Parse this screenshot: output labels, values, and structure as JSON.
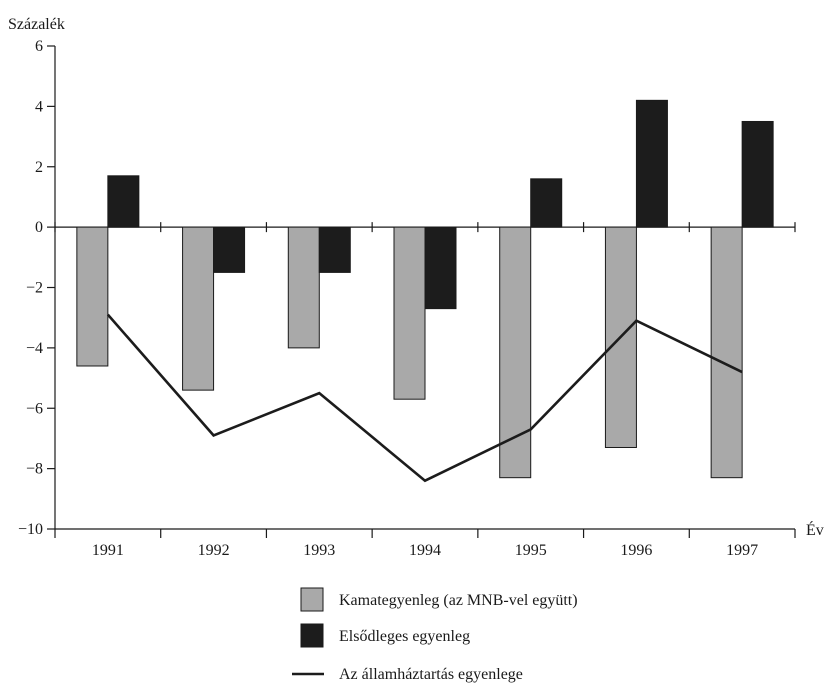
{
  "chart_data": {
    "type": "bar",
    "ylabel": "Százalék",
    "xlabel": "Év",
    "ylim": [
      -10,
      6
    ],
    "yticks": [
      6,
      4,
      2,
      0,
      -2,
      -4,
      -6,
      -8,
      -10
    ],
    "ytick_labels": [
      "6",
      "4",
      "2",
      "0",
      "-2",
      "-4",
      "-6",
      "-8",
      "-10"
    ],
    "categories": [
      "1991",
      "1992",
      "1993",
      "1994",
      "1995",
      "1996",
      "1997"
    ],
    "grid": false,
    "legend_position": "bottom",
    "series": [
      {
        "name": "Kamategyenleg (az MNB-vel együtt)",
        "kind": "bar",
        "color": "#a9a9a9",
        "values": [
          -4.6,
          -5.4,
          -4.0,
          -5.7,
          -8.3,
          -7.3,
          -8.3
        ]
      },
      {
        "name": "Elsődleges egyenleg",
        "kind": "bar",
        "color": "#1c1c1c",
        "values": [
          1.7,
          -1.5,
          -1.5,
          -2.7,
          1.6,
          4.2,
          3.5
        ]
      },
      {
        "name": "Az államháztartás egyenlege",
        "kind": "line",
        "color": "#1c1c1c",
        "values": [
          -2.9,
          -6.9,
          -5.5,
          -8.4,
          -6.7,
          -3.1,
          -4.8
        ]
      }
    ]
  }
}
